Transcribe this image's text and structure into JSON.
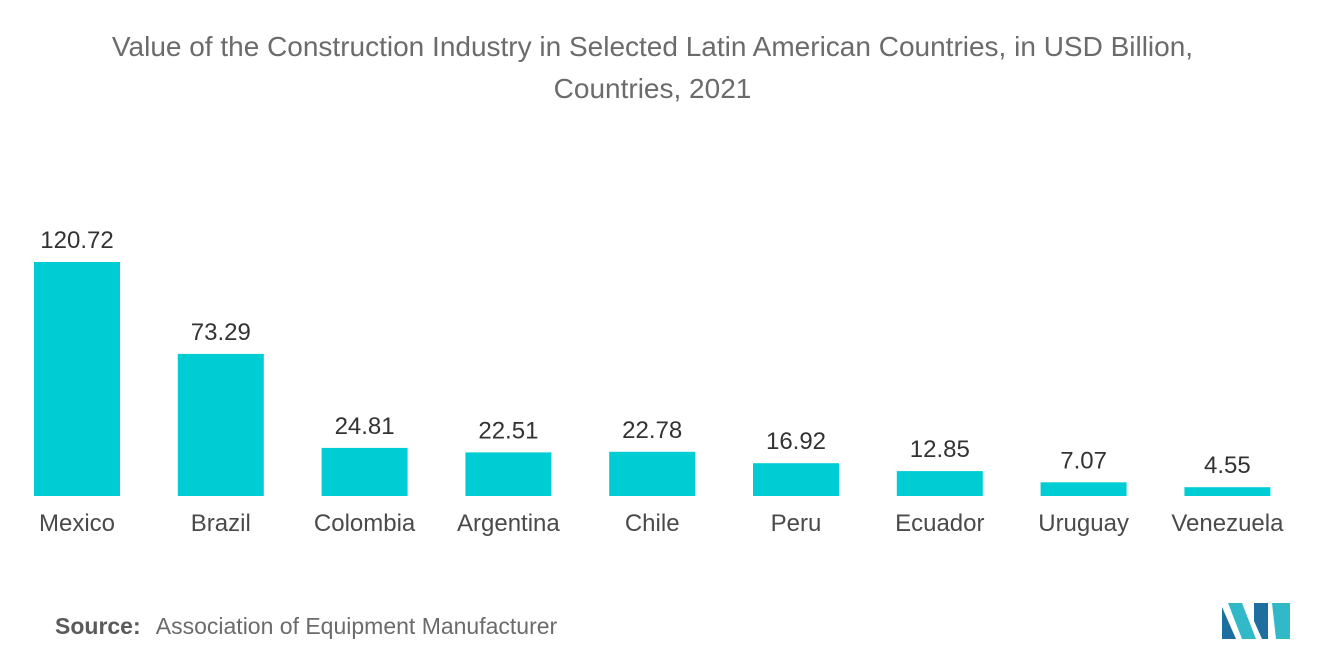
{
  "chart_data": {
    "type": "bar",
    "title_lines": [
      "Value of the Construction Industry in Selected Latin American Countries, in USD Billion,",
      "Countries, 2021"
    ],
    "categories": [
      "Mexico",
      "Brazil",
      "Colombia",
      "Argentina",
      "Chile",
      "Peru",
      "Ecuador",
      "Uruguay",
      "Venezuela"
    ],
    "values": [
      120.72,
      73.29,
      24.81,
      22.51,
      22.78,
      16.92,
      12.85,
      7.07,
      4.55
    ],
    "value_labels": [
      "120.72",
      "73.29",
      "24.81",
      "22.51",
      "22.78",
      "16.92",
      "12.85",
      "7.07",
      "4.55"
    ],
    "xlabel": "",
    "ylabel": "",
    "ylim": [
      0,
      120.72
    ],
    "grid": false,
    "legend": "none",
    "bar_color": "#00cdd3"
  },
  "source": {
    "label": "Source:",
    "text": "Association of Equipment Manufacturer"
  },
  "logo": {
    "icon": "mordor-intelligence-logo-icon",
    "colors": [
      "#1e6f9f",
      "#32b9c8"
    ]
  }
}
